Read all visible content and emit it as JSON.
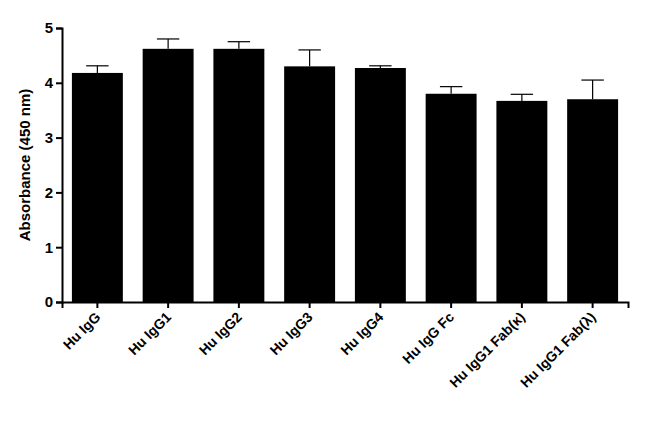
{
  "chart_data": {
    "type": "bar",
    "y_label": "Absorbance (450 nm)",
    "categories": [
      "Hu IgG",
      "Hu IgG1",
      "Hu IgG2",
      "Hu IgG3",
      "Hu IgG4",
      "Hu IgG Fc",
      "Hu IgG1 Fab(κ)",
      "Hu IgG1 Fab(λ)"
    ],
    "values": [
      4.18,
      4.62,
      4.62,
      4.3,
      4.27,
      3.8,
      3.67,
      3.7
    ],
    "errors": [
      0.13,
      0.18,
      0.13,
      0.3,
      0.04,
      0.13,
      0.12,
      0.35
    ],
    "color": "#000000",
    "ylim": [
      0,
      5
    ],
    "yticks": [
      0,
      1,
      2,
      3,
      4,
      5
    ],
    "grid": false
  }
}
